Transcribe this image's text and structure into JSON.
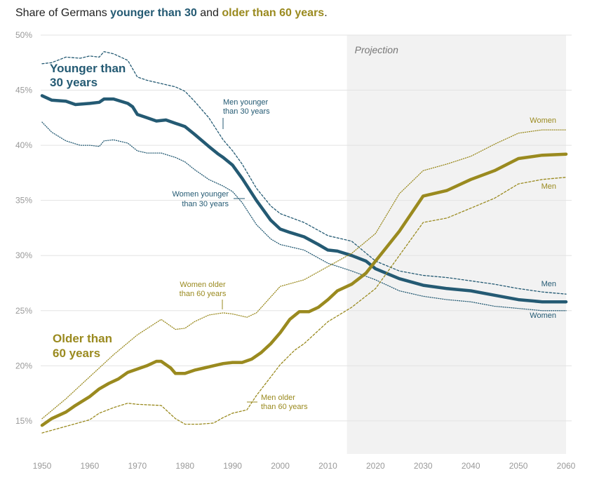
{
  "title": {
    "prefix": "Share of Germans ",
    "highlight1": "younger than 30",
    "middle": " and ",
    "highlight2": "older than 60 years",
    "suffix": "."
  },
  "colors": {
    "young": "#245a73",
    "old": "#9a8a1f",
    "projection_band": "#f2f2f2",
    "grid": "#e3e3e3",
    "axis_text": "#999999"
  },
  "chart_data": {
    "type": "line",
    "title": "Share of Germans younger than 30 and older than 60 years.",
    "xlim": [
      1950,
      2060
    ],
    "ylim": [
      12,
      50
    ],
    "x_ticks": [
      1950,
      1960,
      1970,
      1980,
      1990,
      2000,
      2010,
      2020,
      2030,
      2040,
      2050,
      2060
    ],
    "y_ticks": [
      15,
      20,
      25,
      30,
      35,
      40,
      45,
      50
    ],
    "y_tick_labels": [
      "15%",
      "20%",
      "25%",
      "30%",
      "35%",
      "40%",
      "45%",
      "50%"
    ],
    "grid": "horizontal",
    "projection": {
      "from": 2014,
      "to": 2060,
      "label": "Projection"
    },
    "series": [
      {
        "name": "Younger than 30 years",
        "group": "young",
        "style": "solid-thick",
        "x": [
          1950,
          1952,
          1955,
          1957,
          1960,
          1962,
          1963,
          1965,
          1968,
          1969,
          1970,
          1972,
          1974,
          1976,
          1978,
          1980,
          1982,
          1985,
          1987,
          1988,
          1990,
          1992,
          1995,
          1998,
          2000,
          2002,
          2005,
          2008,
          2010,
          2012,
          2015,
          2018,
          2020,
          2025,
          2030,
          2035,
          2040,
          2045,
          2050,
          2055,
          2060
        ],
        "y": [
          44.5,
          44.1,
          44.0,
          43.7,
          43.8,
          43.9,
          44.2,
          44.2,
          43.8,
          43.5,
          42.8,
          42.5,
          42.2,
          42.3,
          42.0,
          41.7,
          41.0,
          39.9,
          39.2,
          38.9,
          38.2,
          37.0,
          35.0,
          33.2,
          32.4,
          32.1,
          31.7,
          31.0,
          30.5,
          30.4,
          30.0,
          29.5,
          28.8,
          27.9,
          27.3,
          27.0,
          26.8,
          26.4,
          26.0,
          25.8,
          25.8
        ]
      },
      {
        "name": "Men younger than 30 years",
        "group": "young",
        "style": "dashed",
        "x": [
          1950,
          1952,
          1955,
          1958,
          1960,
          1962,
          1963,
          1965,
          1968,
          1970,
          1972,
          1975,
          1978,
          1980,
          1982,
          1985,
          1988,
          1990,
          1992,
          1995,
          1998,
          2000,
          2005,
          2010,
          2015,
          2020,
          2025,
          2030,
          2035,
          2040,
          2045,
          2050,
          2055,
          2060
        ],
        "y": [
          47.4,
          47.5,
          48.0,
          47.9,
          48.1,
          48.0,
          48.5,
          48.3,
          47.7,
          46.2,
          45.9,
          45.6,
          45.3,
          44.9,
          44.0,
          42.5,
          40.5,
          39.5,
          38.3,
          36.1,
          34.5,
          33.8,
          33.0,
          31.8,
          31.3,
          29.5,
          28.6,
          28.2,
          28.0,
          27.7,
          27.4,
          27.0,
          26.7,
          26.5
        ]
      },
      {
        "name": "Women younger than 30 years",
        "group": "young",
        "style": "dotted",
        "x": [
          1950,
          1952,
          1955,
          1958,
          1960,
          1962,
          1963,
          1965,
          1968,
          1970,
          1972,
          1975,
          1978,
          1980,
          1982,
          1985,
          1988,
          1990,
          1992,
          1995,
          1998,
          2000,
          2005,
          2010,
          2015,
          2020,
          2025,
          2030,
          2035,
          2040,
          2045,
          2050,
          2055,
          2060
        ],
        "y": [
          42.1,
          41.2,
          40.4,
          40.0,
          40.0,
          39.9,
          40.4,
          40.5,
          40.2,
          39.5,
          39.3,
          39.3,
          38.9,
          38.5,
          37.8,
          36.9,
          36.3,
          35.8,
          34.8,
          32.8,
          31.5,
          31.0,
          30.5,
          29.3,
          28.6,
          27.8,
          26.8,
          26.3,
          26.0,
          25.8,
          25.4,
          25.2,
          25.0,
          25.0
        ]
      },
      {
        "name": "Older than 60 years",
        "group": "old",
        "style": "solid-thick",
        "x": [
          1950,
          1952,
          1955,
          1957,
          1960,
          1962,
          1964,
          1966,
          1968,
          1970,
          1972,
          1974,
          1975,
          1977,
          1978,
          1980,
          1982,
          1984,
          1986,
          1988,
          1990,
          1992,
          1994,
          1996,
          1998,
          2000,
          2002,
          2004,
          2006,
          2008,
          2010,
          2012,
          2015,
          2018,
          2020,
          2025,
          2030,
          2035,
          2040,
          2045,
          2050,
          2055,
          2060
        ],
        "y": [
          14.6,
          15.2,
          15.8,
          16.4,
          17.2,
          17.9,
          18.4,
          18.8,
          19.4,
          19.7,
          20.0,
          20.4,
          20.4,
          19.8,
          19.3,
          19.3,
          19.6,
          19.8,
          20.0,
          20.2,
          20.3,
          20.3,
          20.6,
          21.2,
          22.0,
          23.0,
          24.2,
          24.9,
          24.9,
          25.3,
          26.0,
          26.8,
          27.4,
          28.4,
          29.5,
          32.2,
          35.4,
          35.9,
          36.9,
          37.7,
          38.8,
          39.1,
          39.2
        ]
      },
      {
        "name": "Women older than 60 years",
        "group": "old",
        "style": "dotted",
        "x": [
          1950,
          1955,
          1960,
          1965,
          1970,
          1975,
          1978,
          1980,
          1982,
          1985,
          1988,
          1990,
          1993,
          1995,
          2000,
          2005,
          2010,
          2015,
          2020,
          2025,
          2030,
          2035,
          2040,
          2045,
          2050,
          2055,
          2060
        ],
        "y": [
          15.2,
          17.0,
          19.0,
          21.0,
          22.8,
          24.2,
          23.3,
          23.4,
          24.0,
          24.6,
          24.8,
          24.7,
          24.4,
          24.8,
          27.2,
          27.8,
          29.0,
          30.2,
          32.0,
          35.6,
          37.7,
          38.3,
          39.0,
          40.1,
          41.1,
          41.4,
          41.4
        ]
      },
      {
        "name": "Men older than 60 years",
        "group": "old",
        "style": "dashed",
        "x": [
          1950,
          1955,
          1960,
          1962,
          1965,
          1968,
          1970,
          1975,
          1978,
          1980,
          1983,
          1986,
          1988,
          1990,
          1993,
          1995,
          2000,
          2003,
          2005,
          2010,
          2015,
          2020,
          2025,
          2030,
          2035,
          2040,
          2045,
          2050,
          2055,
          2060
        ],
        "y": [
          13.9,
          14.5,
          15.1,
          15.7,
          16.2,
          16.6,
          16.5,
          16.4,
          15.2,
          14.7,
          14.7,
          14.8,
          15.3,
          15.7,
          16.0,
          17.3,
          20.1,
          21.4,
          22.0,
          24.0,
          25.3,
          27.0,
          30.0,
          33.0,
          33.4,
          34.3,
          35.2,
          36.5,
          36.9,
          37.1
        ]
      }
    ],
    "annotations": {
      "young_label_line1": "Younger than",
      "young_label_line2": "30 years",
      "old_label_line1": "Older than",
      "old_label_line2": "60 years",
      "men_young_line1": "Men younger",
      "men_young_line2": "than 30 years",
      "women_young_line1": "Women younger",
      "women_young_line2": "than 30 years",
      "women_old_line1": "Women older",
      "women_old_line2": "than 60 years",
      "men_old_line1": "Men older",
      "men_old_line2": "than 60 years",
      "women_end": "Women",
      "men_end_old": "Men",
      "men_end_young": "Men",
      "women_end_young": "Women"
    }
  }
}
